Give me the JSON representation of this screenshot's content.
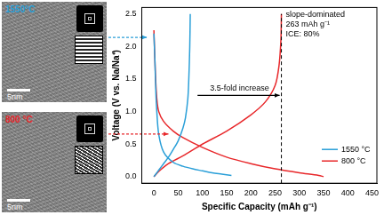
{
  "images": [
    {
      "label": "1550°C",
      "scale_bar": "5nm",
      "color": "#2a9fd8"
    },
    {
      "label": "800 °C",
      "scale_bar": "5nm",
      "color": "#e8272a"
    }
  ],
  "chart_data": {
    "type": "line",
    "x_label": "Specific Capacity (mAh g⁻¹)",
    "y_label": "Voltage (V vs. Na/Na⁺)",
    "annotations": [
      "3.5-fold increase",
      "slope-dominated",
      "263 mAh g⁻¹",
      "ICE: 80%"
    ],
    "vline": 263,
    "xlim": [
      -25,
      460
    ],
    "xticks": [
      0,
      50,
      100,
      150,
      200,
      250,
      300,
      350,
      400,
      450
    ],
    "ylim": [
      -0.1,
      2.6
    ],
    "yticks": [
      {
        "value": 0,
        "label": "0.0"
      },
      {
        "value": 0.5,
        "label": "0.5"
      },
      {
        "value": 1,
        "label": "1.0"
      },
      {
        "value": 1.5,
        "label": "1.5"
      },
      {
        "value": 2,
        "label": "2.0"
      },
      {
        "value": 2.5,
        "label": "2.5"
      }
    ],
    "grid": false,
    "legend": "lower right",
    "series": [
      {
        "name": "1550 °C",
        "color": "#2a9fd8",
        "x": [
          0,
          2,
          4,
          6,
          10,
          20,
          40,
          60,
          80,
          100,
          120,
          140,
          160,
          null,
          0,
          5,
          10,
          20,
          30,
          40,
          50,
          60,
          65,
          70,
          72,
          74,
          75
        ],
        "values": [
          2.2,
          1.8,
          1.3,
          1.0,
          0.65,
          0.38,
          0.22,
          0.16,
          0.12,
          0.09,
          0.06,
          0.04,
          0.02,
          null,
          0.0,
          0.05,
          0.1,
          0.2,
          0.3,
          0.42,
          0.55,
          0.75,
          0.9,
          1.2,
          1.5,
          2.0,
          2.5
        ]
      },
      {
        "name": "800 °C",
        "color": "#e8272a",
        "x": [
          0,
          3,
          6,
          10,
          20,
          40,
          60,
          100,
          150,
          200,
          250,
          300,
          340,
          350,
          null,
          0,
          10,
          30,
          60,
          100,
          150,
          200,
          230,
          250,
          258,
          262,
          263
        ],
        "values": [
          2.25,
          1.6,
          1.2,
          1.0,
          0.85,
          0.7,
          0.6,
          0.45,
          0.3,
          0.2,
          0.12,
          0.06,
          0.02,
          0.0,
          null,
          0.0,
          0.08,
          0.2,
          0.32,
          0.5,
          0.7,
          0.95,
          1.15,
          1.4,
          1.7,
          2.1,
          2.5
        ]
      }
    ]
  }
}
